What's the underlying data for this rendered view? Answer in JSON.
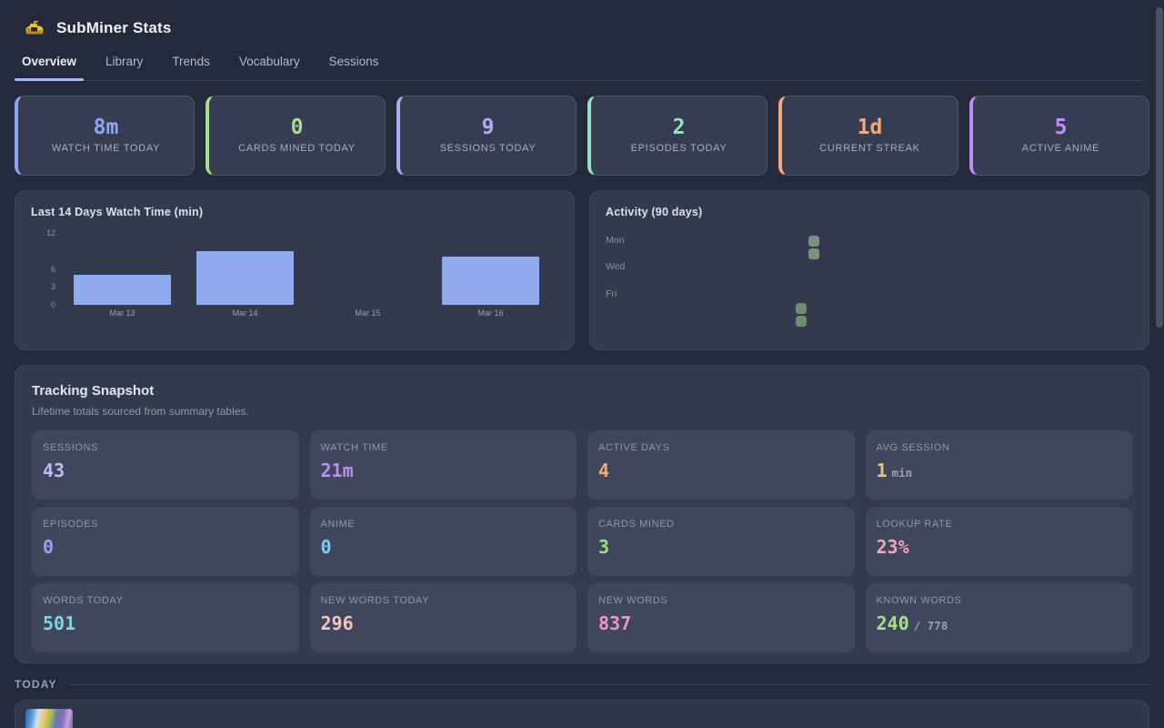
{
  "app": {
    "title": "SubMiner Stats"
  },
  "tabs": [
    {
      "label": "Overview",
      "active": true
    },
    {
      "label": "Library",
      "active": false
    },
    {
      "label": "Trends",
      "active": false
    },
    {
      "label": "Vocabulary",
      "active": false
    },
    {
      "label": "Sessions",
      "active": false
    }
  ],
  "stat_cards": [
    {
      "label": "WATCH TIME TODAY",
      "value": "8m",
      "color": "#8da7f2"
    },
    {
      "label": "CARDS MINED TODAY",
      "value": "0",
      "color": "#a6df8e"
    },
    {
      "label": "SESSIONS TODAY",
      "value": "9",
      "color": "#b2aaed"
    },
    {
      "label": "EPISODES TODAY",
      "value": "2",
      "color": "#93e2c5"
    },
    {
      "label": "CURRENT STREAK",
      "value": "1d",
      "color": "#f2a97c"
    },
    {
      "label": "ACTIVE ANIME",
      "value": "5",
      "color": "#bd8ff5"
    }
  ],
  "chart_data": {
    "type": "bar",
    "title": "Last 14 Days Watch Time (min)",
    "categories": [
      "Mar 13",
      "Mar 14",
      "Mar 15",
      "Mar 16"
    ],
    "values": [
      5,
      9,
      0,
      8
    ],
    "xlabel": "",
    "ylabel": "",
    "ylim": [
      0,
      12
    ],
    "yticks": [
      0,
      3,
      6,
      12
    ],
    "grid": false,
    "legend": false,
    "bar_color": "#90aaed"
  },
  "activity": {
    "title": "Activity (90 days)",
    "day_labels": [
      "Mon",
      "Wed",
      "Fri"
    ],
    "cells": [
      {
        "col": 12,
        "row": 0,
        "color": "#7b9180"
      },
      {
        "col": 12,
        "row": 1,
        "color": "#7b9180"
      },
      {
        "col": 11,
        "row": 5,
        "color": "#6f8d6f"
      },
      {
        "col": 11,
        "row": 6,
        "color": "#6f8d6f"
      }
    ]
  },
  "tracking": {
    "title": "Tracking Snapshot",
    "subtitle": "Lifetime totals sourced from summary tables.",
    "tiles": [
      {
        "label": "SESSIONS",
        "value": "43",
        "suffix": "",
        "color": "#c3bbf2"
      },
      {
        "label": "WATCH TIME",
        "value": "21m",
        "suffix": "",
        "color": "#c289f7"
      },
      {
        "label": "ACTIVE DAYS",
        "value": "4",
        "suffix": "",
        "color": "#f5ab77"
      },
      {
        "label": "AVG SESSION",
        "value": "1",
        "suffix": "min",
        "color": "#ecc46f"
      },
      {
        "label": "EPISODES",
        "value": "0",
        "suffix": "",
        "color": "#8fa7f3"
      },
      {
        "label": "ANIME",
        "value": "0",
        "suffix": "",
        "color": "#83c7f0"
      },
      {
        "label": "CARDS MINED",
        "value": "3",
        "suffix": "",
        "color": "#97df82"
      },
      {
        "label": "LOOKUP RATE",
        "value": "23%",
        "suffix": "",
        "color": "#f2a6b9"
      },
      {
        "label": "WORDS TODAY",
        "value": "501",
        "suffix": "",
        "color": "#7cd7de"
      },
      {
        "label": "NEW WORDS TODAY",
        "value": "296",
        "suffix": "",
        "color": "#f3c6c3"
      },
      {
        "label": "NEW WORDS",
        "value": "837",
        "suffix": "",
        "color": "#f292cc"
      },
      {
        "label": "KNOWN WORDS",
        "value": "240",
        "suffix": "/ 778",
        "color": "#a4e28a"
      }
    ]
  },
  "today": {
    "label": "TODAY"
  }
}
